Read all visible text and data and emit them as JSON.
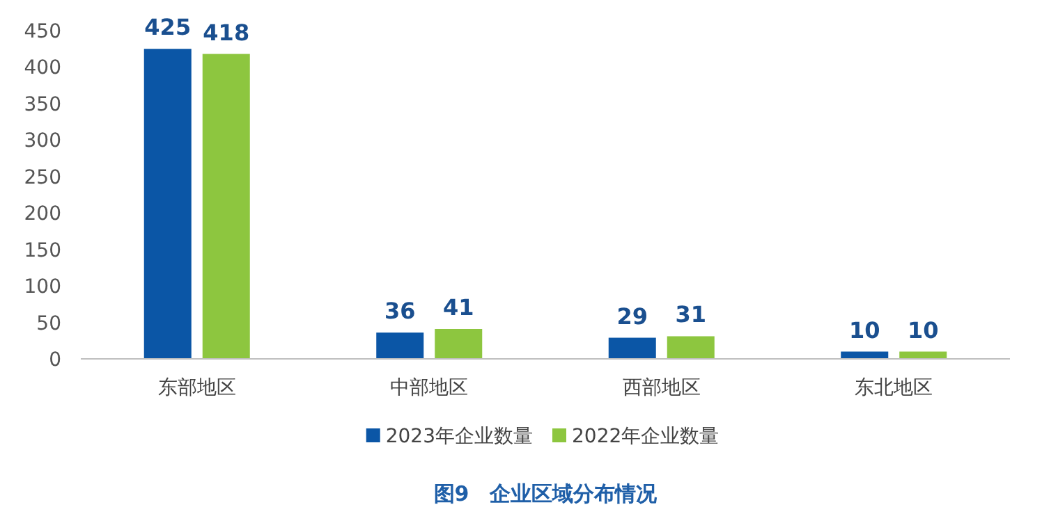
{
  "chart_data": {
    "type": "bar",
    "title": "图9　企业区域分布情况",
    "categories": [
      "东部地区",
      "中部地区",
      "西部地区",
      "东北地区"
    ],
    "series": [
      {
        "name": "2023年企业数量",
        "color": "#0b56a6",
        "values": [
          425,
          36,
          29,
          10
        ]
      },
      {
        "name": "2022年企业数量",
        "color": "#8dc63f",
        "values": [
          418,
          41,
          31,
          10
        ]
      }
    ],
    "ylim": [
      0,
      450
    ],
    "yticks": [
      0,
      50,
      100,
      150,
      200,
      250,
      300,
      350,
      400,
      450
    ],
    "data_labels": true,
    "legend": "bottom",
    "grid": false
  }
}
